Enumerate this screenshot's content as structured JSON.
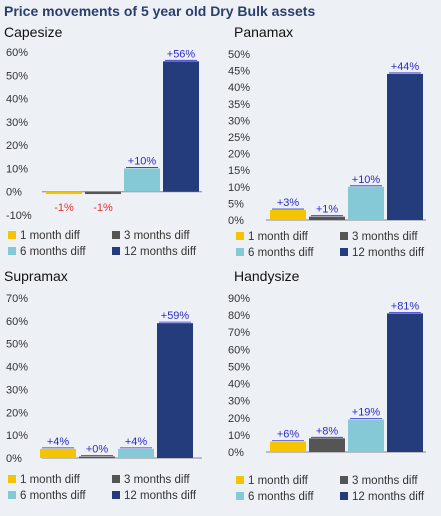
{
  "title": "Price movements of 5 year old Dry Bulk assets",
  "colors": {
    "1 month diff": "#f5c400",
    "3 months diff": "#555555",
    "6 months diff": "#86c9d6",
    "12 months diff": "#253c7c",
    "positive_label": "#2b2bc8",
    "negative_label": "#e03030"
  },
  "legend_entries": [
    "1 month diff",
    "3 months diff",
    "6 months diff",
    "12 months diff"
  ],
  "chart_data": [
    {
      "type": "bar",
      "title": "Capesize",
      "categories": [
        "1 month diff",
        "3 months diff",
        "6 months diff",
        "12 months diff"
      ],
      "values": [
        -1,
        -1,
        10,
        56
      ],
      "data_labels": [
        "-1%",
        "-1%",
        "+10%",
        "+56%"
      ],
      "ylim": [
        -10,
        60
      ],
      "yticks": [
        -10,
        0,
        10,
        20,
        30,
        40,
        50,
        60
      ],
      "ytick_labels": [
        "-10%",
        "0%",
        "10%",
        "20%",
        "30%",
        "40%",
        "50%",
        "60%"
      ],
      "grid": false,
      "legend": "bottom"
    },
    {
      "type": "bar",
      "title": "Panamax",
      "categories": [
        "1 month diff",
        "3 months diff",
        "6 months diff",
        "12 months diff"
      ],
      "values": [
        3,
        1,
        10,
        44
      ],
      "data_labels": [
        "+3%",
        "+1%",
        "+10%",
        "+44%"
      ],
      "ylim": [
        0,
        50
      ],
      "yticks": [
        0,
        5,
        10,
        15,
        20,
        25,
        30,
        35,
        40,
        45,
        50
      ],
      "ytick_labels": [
        "0%",
        "5%",
        "10%",
        "15%",
        "20%",
        "25%",
        "30%",
        "35%",
        "40%",
        "45%",
        "50%"
      ],
      "grid": false,
      "legend": "bottom"
    },
    {
      "type": "bar",
      "title": "Supramax",
      "categories": [
        "1 month diff",
        "3 months diff",
        "6 months diff",
        "12 months diff"
      ],
      "values": [
        4,
        0,
        4,
        59
      ],
      "data_labels": [
        "+4%",
        "+0%",
        "+4%",
        "+59%"
      ],
      "ylim": [
        0,
        70
      ],
      "yticks": [
        0,
        10,
        20,
        30,
        40,
        50,
        60,
        70
      ],
      "ytick_labels": [
        "0%",
        "10%",
        "20%",
        "30%",
        "40%",
        "50%",
        "60%",
        "70%"
      ],
      "grid": false,
      "legend": "bottom"
    },
    {
      "type": "bar",
      "title": "Handysize",
      "categories": [
        "1 month diff",
        "3 months diff",
        "6 months diff",
        "12 months diff"
      ],
      "values": [
        6,
        8,
        19,
        81
      ],
      "data_labels": [
        "+6%",
        "+8%",
        "+19%",
        "+81%"
      ],
      "ylim": [
        0,
        90
      ],
      "yticks": [
        0,
        10,
        20,
        30,
        40,
        50,
        60,
        70,
        80,
        90
      ],
      "ytick_labels": [
        "0%",
        "10%",
        "20%",
        "30%",
        "40%",
        "50%",
        "60%",
        "70%",
        "80%",
        "90%"
      ],
      "grid": false,
      "legend": "bottom"
    }
  ]
}
